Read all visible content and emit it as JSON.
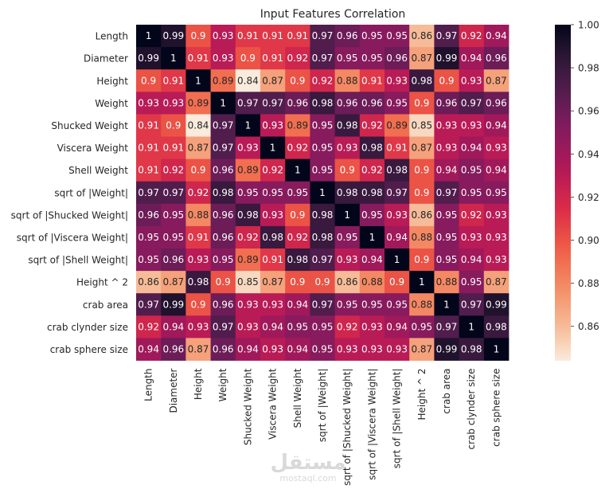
{
  "chart_data": {
    "type": "heatmap",
    "title": "Input Features Correlation",
    "rows": [
      "Length",
      "Diameter",
      "Height",
      "Weight",
      "Shucked Weight",
      "Viscera Weight",
      "Shell Weight",
      "sqrt of |Weight|",
      "sqrt of |Shucked Weight|",
      "sqrt of |Viscera Weight|",
      "sqrt of |Shell Weight|",
      "Height ^ 2",
      "crab area",
      "crab clynder size",
      "crab sphere size"
    ],
    "columns": [
      "Length",
      "Diameter",
      "Height",
      "Weight",
      "Shucked Weight",
      "Viscera Weight",
      "Shell Weight",
      "sqrt of |Weight|",
      "sqrt of |Shucked Weight|",
      "sqrt of |Viscera Weight|",
      "sqrt of |Shell Weight|",
      "Height ^ 2",
      "crab area",
      "crab clynder size",
      "crab sphere size"
    ],
    "values": [
      [
        1,
        0.99,
        0.9,
        0.93,
        0.91,
        0.91,
        0.91,
        0.97,
        0.96,
        0.95,
        0.95,
        0.86,
        0.97,
        0.92,
        0.94
      ],
      [
        0.99,
        1,
        0.91,
        0.93,
        0.9,
        0.91,
        0.92,
        0.97,
        0.95,
        0.95,
        0.96,
        0.87,
        0.99,
        0.94,
        0.96
      ],
      [
        0.9,
        0.91,
        1,
        0.89,
        0.84,
        0.87,
        0.9,
        0.92,
        0.88,
        0.91,
        0.93,
        0.98,
        0.9,
        0.93,
        0.87
      ],
      [
        0.93,
        0.93,
        0.89,
        1,
        0.97,
        0.97,
        0.96,
        0.98,
        0.96,
        0.96,
        0.95,
        0.9,
        0.96,
        0.97,
        0.96
      ],
      [
        0.91,
        0.9,
        0.84,
        0.97,
        1,
        0.93,
        0.89,
        0.95,
        0.98,
        0.92,
        0.89,
        0.85,
        0.93,
        0.93,
        0.94
      ],
      [
        0.91,
        0.91,
        0.87,
        0.97,
        0.93,
        1,
        0.92,
        0.95,
        0.93,
        0.98,
        0.91,
        0.87,
        0.93,
        0.94,
        0.93
      ],
      [
        0.91,
        0.92,
        0.9,
        0.96,
        0.89,
        0.92,
        1,
        0.95,
        0.9,
        0.92,
        0.98,
        0.9,
        0.94,
        0.95,
        0.94
      ],
      [
        0.97,
        0.97,
        0.92,
        0.98,
        0.95,
        0.95,
        0.95,
        1,
        0.98,
        0.98,
        0.97,
        0.9,
        0.97,
        0.95,
        0.95
      ],
      [
        0.96,
        0.95,
        0.88,
        0.96,
        0.98,
        0.93,
        0.9,
        0.98,
        1,
        0.95,
        0.93,
        0.86,
        0.95,
        0.92,
        0.93
      ],
      [
        0.95,
        0.95,
        0.91,
        0.96,
        0.92,
        0.98,
        0.92,
        0.98,
        0.95,
        1,
        0.94,
        0.88,
        0.95,
        0.93,
        0.93
      ],
      [
        0.95,
        0.96,
        0.93,
        0.95,
        0.89,
        0.91,
        0.98,
        0.97,
        0.93,
        0.94,
        1,
        0.9,
        0.95,
        0.94,
        0.93
      ],
      [
        0.86,
        0.87,
        0.98,
        0.9,
        0.85,
        0.87,
        0.9,
        0.9,
        0.86,
        0.88,
        0.9,
        1,
        0.88,
        0.95,
        0.87
      ],
      [
        0.97,
        0.99,
        0.9,
        0.96,
        0.93,
        0.93,
        0.94,
        0.97,
        0.95,
        0.95,
        0.95,
        0.88,
        1,
        0.97,
        0.99
      ],
      [
        0.92,
        0.94,
        0.93,
        0.97,
        0.93,
        0.94,
        0.95,
        0.95,
        0.92,
        0.93,
        0.94,
        0.95,
        0.97,
        1,
        0.98
      ],
      [
        0.94,
        0.96,
        0.87,
        0.96,
        0.94,
        0.93,
        0.94,
        0.95,
        0.93,
        0.93,
        0.93,
        0.87,
        0.99,
        0.98,
        1
      ]
    ],
    "colorbar": {
      "range": [
        0.844,
        1.0
      ],
      "ticks": [
        0.86,
        0.88,
        0.9,
        0.92,
        0.94,
        0.96,
        0.98,
        1.0
      ],
      "tick_labels": [
        "0.86",
        "0.88",
        "0.90",
        "0.92",
        "0.94",
        "0.96",
        "0.98",
        "1.00"
      ],
      "colormap": "rocket_r",
      "low_color": "#faebdd",
      "high_color": "#03051a"
    },
    "annotations": "cell values shown in each cell"
  },
  "watermark": {
    "logo": "مستقل",
    "url": "mostaql.com"
  }
}
